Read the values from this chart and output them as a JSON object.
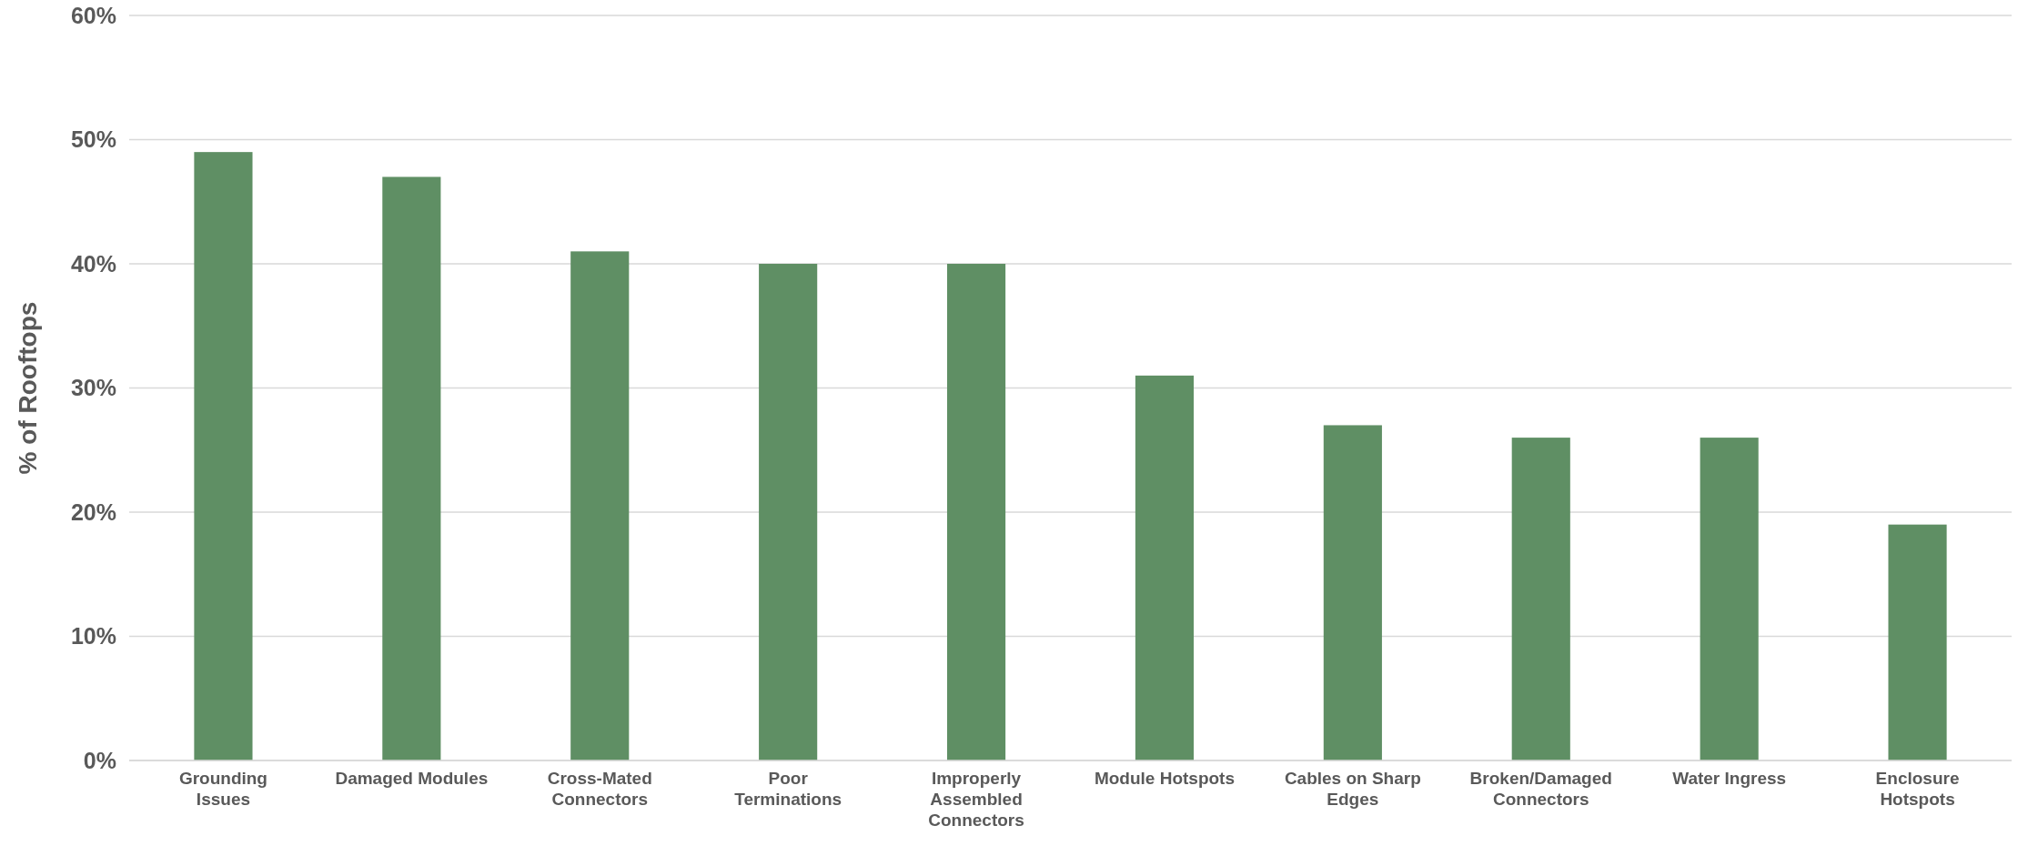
{
  "chart_data": {
    "type": "bar",
    "ylabel": "% of Rooftops",
    "categories": [
      "Grounding Issues",
      "Damaged Modules",
      "Cross-Mated Connectors",
      "Poor Terminations",
      "Improperly Assembled Connectors",
      "Module Hotspots",
      "Cables on Sharp Edges",
      "Broken/Damaged Connectors",
      "Water Ingress",
      "Enclosure Hotspots"
    ],
    "values": [
      49,
      47,
      41,
      40,
      40,
      31,
      27,
      26,
      26,
      19
    ],
    "color": "#5f8f64",
    "ylim": [
      0,
      60
    ],
    "yticks": [
      {
        "value": 0,
        "label": "0%"
      },
      {
        "value": 10,
        "label": "10%"
      },
      {
        "value": 20,
        "label": "20%"
      },
      {
        "value": 30,
        "label": "30%"
      },
      {
        "value": 40,
        "label": "40%"
      },
      {
        "value": 50,
        "label": "50%"
      },
      {
        "value": 60,
        "label": "60%"
      }
    ],
    "grid": "y"
  }
}
